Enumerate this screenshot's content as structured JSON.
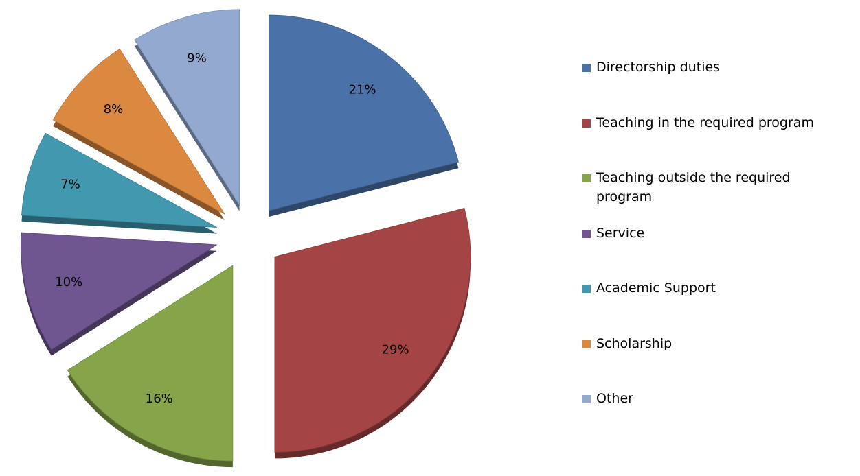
{
  "chart_data": {
    "type": "pie",
    "categories": [
      "Directorship duties",
      "Teaching in the required program",
      "Teaching outside the required program",
      "Service",
      "Academic Support",
      "Scholarship",
      "Other"
    ],
    "values": [
      21,
      29,
      16,
      10,
      7,
      8,
      9
    ],
    "value_labels": [
      "21%",
      "29%",
      "16%",
      "10%",
      "7%",
      "8%",
      "9%"
    ],
    "colors": [
      "#4a71a8",
      "#a44444",
      "#86a44a",
      "#6f5690",
      "#4198af",
      "#db8840",
      "#93a9cf"
    ],
    "legend": "right"
  }
}
